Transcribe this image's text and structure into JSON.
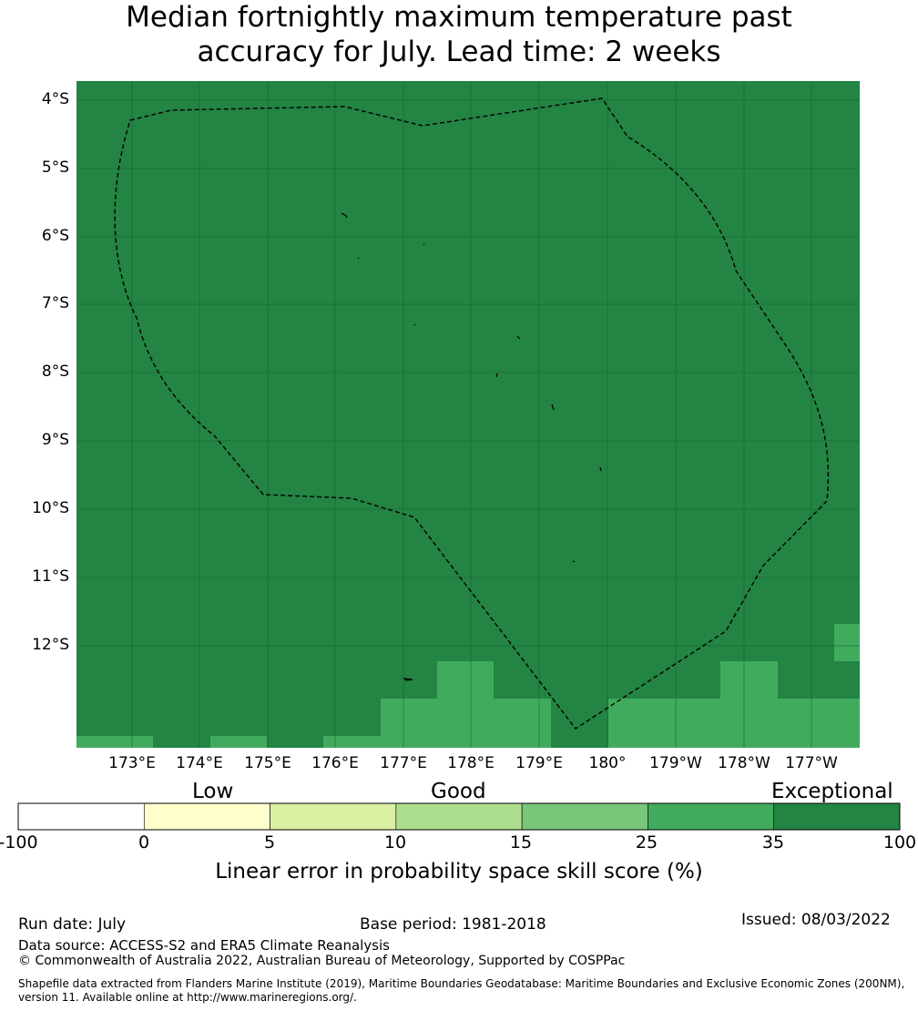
{
  "title_line1": "Median fortnightly maximum temperature past",
  "title_line2": "accuracy for July. Lead time: 2 weeks",
  "map": {
    "lat_labels": [
      "4°S",
      "5°S",
      "6°S",
      "7°S",
      "8°S",
      "9°S",
      "10°S",
      "11°S",
      "12°S"
    ],
    "lon_labels": [
      "173°E",
      "174°E",
      "175°E",
      "176°E",
      "177°E",
      "178°E",
      "179°E",
      "180°",
      "179°W",
      "178°W",
      "177°W"
    ],
    "colors": {
      "exceptional": "#238443",
      "good_high": "#41ab5d"
    }
  },
  "colorbar": {
    "categories": [
      "Low",
      "Good",
      "Exceptional"
    ],
    "ticks": [
      "-100",
      "0",
      "5",
      "10",
      "15",
      "25",
      "35",
      "100"
    ],
    "colors": [
      "#ffffff",
      "#ffffcc",
      "#d9f0a3",
      "#addd8e",
      "#78c679",
      "#41ab5d",
      "#238443"
    ],
    "label": "Linear error in probability space skill score (%)"
  },
  "footer": {
    "run_date": "Run date: July",
    "base_period": "Base period: 1981-2018",
    "issued": "Issued: 08/03/2022",
    "data_source": "Data source: ACCESS-S2 and ERA5 Climate Reanalysis",
    "copyright": "© Commonwealth of Australia 2022, Australian Bureau of Meteorology, Supported by COSPPac",
    "shapefile_line1": "Shapefile data extracted from Flanders Marine Institute (2019), Maritime Boundaries Geodatabase: Maritime Boundaries and Exclusive Economic Zones (200NM),",
    "shapefile_line2": "version 11. Available online at http://www.marineregions.org/."
  }
}
